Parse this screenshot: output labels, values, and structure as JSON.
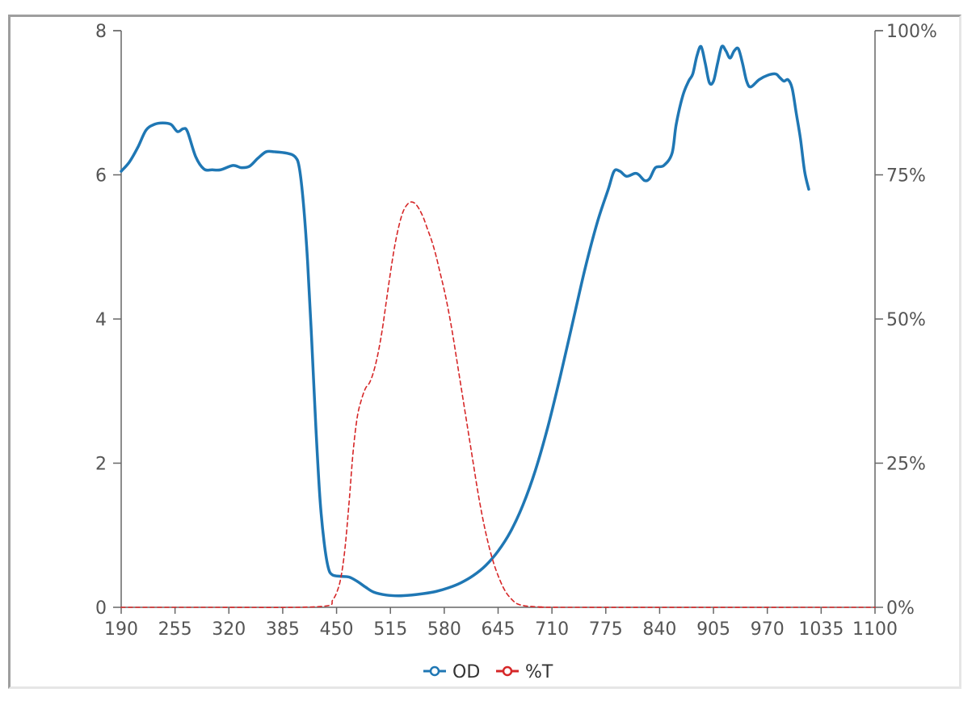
{
  "chart_data": {
    "type": "line",
    "x_axis": {
      "ticks": [
        190,
        255,
        320,
        385,
        450,
        515,
        580,
        645,
        710,
        775,
        840,
        905,
        970,
        1035,
        1100
      ],
      "range": [
        190,
        1100
      ]
    },
    "y_axis_left": {
      "ticks": [
        0,
        2,
        4,
        6,
        8
      ],
      "range": [
        0,
        8
      ]
    },
    "y_axis_right": {
      "ticks": [
        "0%",
        "25%",
        "50%",
        "75%",
        "100%"
      ],
      "range": [
        0,
        100
      ]
    },
    "grid": false,
    "legend_position": "bottom-center",
    "series": [
      {
        "name": "OD",
        "axis": "left",
        "color": "#1f77b4",
        "style": "solid",
        "points": [
          [
            190,
            6.05
          ],
          [
            200,
            6.18
          ],
          [
            210,
            6.38
          ],
          [
            220,
            6.62
          ],
          [
            230,
            6.7
          ],
          [
            240,
            6.72
          ],
          [
            250,
            6.7
          ],
          [
            258,
            6.6
          ],
          [
            265,
            6.64
          ],
          [
            270,
            6.6
          ],
          [
            280,
            6.25
          ],
          [
            290,
            6.08
          ],
          [
            300,
            6.07
          ],
          [
            310,
            6.07
          ],
          [
            325,
            6.13
          ],
          [
            335,
            6.1
          ],
          [
            345,
            6.12
          ],
          [
            355,
            6.23
          ],
          [
            365,
            6.32
          ],
          [
            375,
            6.32
          ],
          [
            390,
            6.3
          ],
          [
            400,
            6.25
          ],
          [
            405,
            6.1
          ],
          [
            410,
            5.6
          ],
          [
            415,
            4.8
          ],
          [
            420,
            3.7
          ],
          [
            425,
            2.5
          ],
          [
            430,
            1.5
          ],
          [
            435,
            0.9
          ],
          [
            440,
            0.55
          ],
          [
            445,
            0.45
          ],
          [
            455,
            0.43
          ],
          [
            465,
            0.42
          ],
          [
            475,
            0.36
          ],
          [
            485,
            0.28
          ],
          [
            495,
            0.21
          ],
          [
            510,
            0.17
          ],
          [
            525,
            0.16
          ],
          [
            540,
            0.17
          ],
          [
            555,
            0.19
          ],
          [
            570,
            0.22
          ],
          [
            585,
            0.27
          ],
          [
            600,
            0.34
          ],
          [
            615,
            0.44
          ],
          [
            630,
            0.58
          ],
          [
            645,
            0.78
          ],
          [
            660,
            1.05
          ],
          [
            675,
            1.42
          ],
          [
            690,
            1.9
          ],
          [
            705,
            2.5
          ],
          [
            720,
            3.2
          ],
          [
            735,
            3.95
          ],
          [
            750,
            4.7
          ],
          [
            765,
            5.35
          ],
          [
            778,
            5.8
          ],
          [
            785,
            6.05
          ],
          [
            792,
            6.05
          ],
          [
            800,
            5.98
          ],
          [
            810,
            6.02
          ],
          [
            815,
            6.0
          ],
          [
            822,
            5.92
          ],
          [
            828,
            5.95
          ],
          [
            835,
            6.1
          ],
          [
            845,
            6.13
          ],
          [
            855,
            6.3
          ],
          [
            860,
            6.7
          ],
          [
            868,
            7.1
          ],
          [
            875,
            7.3
          ],
          [
            880,
            7.4
          ],
          [
            885,
            7.65
          ],
          [
            890,
            7.78
          ],
          [
            895,
            7.55
          ],
          [
            900,
            7.28
          ],
          [
            905,
            7.3
          ],
          [
            910,
            7.55
          ],
          [
            915,
            7.78
          ],
          [
            920,
            7.72
          ],
          [
            925,
            7.62
          ],
          [
            930,
            7.72
          ],
          [
            935,
            7.75
          ],
          [
            940,
            7.55
          ],
          [
            945,
            7.3
          ],
          [
            950,
            7.22
          ],
          [
            960,
            7.32
          ],
          [
            970,
            7.38
          ],
          [
            980,
            7.4
          ],
          [
            985,
            7.35
          ],
          [
            990,
            7.3
          ],
          [
            995,
            7.32
          ],
          [
            1000,
            7.2
          ],
          [
            1005,
            6.85
          ],
          [
            1010,
            6.5
          ],
          [
            1015,
            6.05
          ],
          [
            1020,
            5.8
          ]
        ]
      },
      {
        "name": "%T",
        "axis": "right",
        "color": "#d62728",
        "style": "dashed",
        "points": [
          [
            190,
            0
          ],
          [
            300,
            0
          ],
          [
            400,
            0
          ],
          [
            440,
            0.3
          ],
          [
            445,
            1.2
          ],
          [
            450,
            2.5
          ],
          [
            455,
            5
          ],
          [
            460,
            10
          ],
          [
            465,
            18
          ],
          [
            470,
            27
          ],
          [
            475,
            33
          ],
          [
            480,
            36
          ],
          [
            485,
            38
          ],
          [
            490,
            39
          ],
          [
            495,
            41
          ],
          [
            500,
            44
          ],
          [
            505,
            48
          ],
          [
            510,
            53
          ],
          [
            515,
            58
          ],
          [
            520,
            62.5
          ],
          [
            525,
            66
          ],
          [
            530,
            68.5
          ],
          [
            535,
            69.8
          ],
          [
            540,
            70.3
          ],
          [
            545,
            70
          ],
          [
            550,
            69
          ],
          [
            555,
            67.5
          ],
          [
            560,
            65.5
          ],
          [
            565,
            63.5
          ],
          [
            570,
            61
          ],
          [
            575,
            58
          ],
          [
            580,
            55
          ],
          [
            585,
            51.5
          ],
          [
            590,
            47.5
          ],
          [
            595,
            43
          ],
          [
            600,
            38.5
          ],
          [
            605,
            34
          ],
          [
            610,
            29.5
          ],
          [
            615,
            25
          ],
          [
            620,
            20.5
          ],
          [
            625,
            16.5
          ],
          [
            630,
            13
          ],
          [
            635,
            10
          ],
          [
            640,
            7.5
          ],
          [
            645,
            5.5
          ],
          [
            650,
            3.8
          ],
          [
            655,
            2.5
          ],
          [
            660,
            1.6
          ],
          [
            665,
            0.9
          ],
          [
            670,
            0.5
          ],
          [
            680,
            0.2
          ],
          [
            700,
            0.05
          ],
          [
            730,
            0
          ],
          [
            1100,
            0
          ]
        ]
      }
    ]
  }
}
